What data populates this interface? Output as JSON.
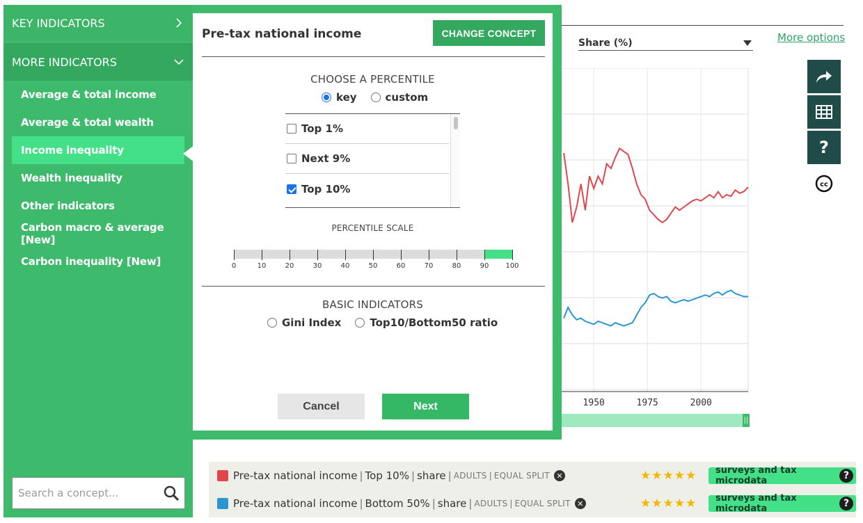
{
  "sidebar": {
    "key_indicators": "KEY INDICATORS",
    "more_indicators": "MORE INDICATORS",
    "items": [
      {
        "label": "Average & total income"
      },
      {
        "label": "Average & total wealth"
      },
      {
        "label": "Income inequality"
      },
      {
        "label": "Wealth inequality"
      },
      {
        "label": "Other indicators"
      },
      {
        "label": "Carbon macro & average [New]"
      },
      {
        "label": "Carbon inequality [New]"
      }
    ],
    "active_index": 2,
    "search_placeholder": "Search a concept..."
  },
  "modal": {
    "title": "Pre-tax national income",
    "change_concept": "CHANGE CONCEPT",
    "choose_percentile": "CHOOSE A PERCENTILE",
    "mode_options": [
      {
        "label": "key",
        "selected": true
      },
      {
        "label": "custom",
        "selected": false
      }
    ],
    "percentiles": [
      {
        "label": "Top 1%",
        "checked": false
      },
      {
        "label": "Next 9%",
        "checked": false
      },
      {
        "label": "Top 10%",
        "checked": true
      }
    ],
    "percentile_scale": "PERCENTILE SCALE",
    "scale_ticks": [
      "0",
      "10",
      "20",
      "30",
      "40",
      "50",
      "60",
      "70",
      "80",
      "90",
      "100"
    ],
    "scale_selected_range": [
      90,
      100
    ],
    "basic_indicators": "BASIC INDICATORS",
    "basic_options": [
      {
        "label": "Gini Index"
      },
      {
        "label": "Top10/Bottom50 ratio"
      }
    ],
    "cancel": "Cancel",
    "next": "Next"
  },
  "controls": {
    "unit_select": "Share (%)",
    "more_options": "More options"
  },
  "chart_data": {
    "type": "line",
    "x_ticks": [
      "1950",
      "1975",
      "2000"
    ],
    "xlim": [
      1935,
      2022
    ],
    "grid": true,
    "series": [
      {
        "color": "#e0474c",
        "x": [
          1936,
          1938,
          1940,
          1942,
          1944,
          1946,
          1948,
          1950,
          1952,
          1954,
          1956,
          1958,
          1960,
          1962,
          1964,
          1966,
          1968,
          1970,
          1972,
          1974,
          1976,
          1978,
          1980,
          1982,
          1984,
          1986,
          1988,
          1990,
          1992,
          1994,
          1996,
          1998,
          2000,
          2002,
          2004,
          2006,
          2008,
          2010,
          2012,
          2014,
          2016,
          2018,
          2020,
          2022
        ],
        "y": [
          0.305,
          0.285,
          0.26,
          0.27,
          0.285,
          0.268,
          0.29,
          0.282,
          0.29,
          0.285,
          0.298,
          0.295,
          0.302,
          0.308,
          0.306,
          0.304,
          0.295,
          0.285,
          0.278,
          0.275,
          0.268,
          0.265,
          0.262,
          0.26,
          0.262,
          0.266,
          0.27,
          0.268,
          0.27,
          0.272,
          0.274,
          0.275,
          0.274,
          0.276,
          0.278,
          0.276,
          0.28,
          0.276,
          0.278,
          0.277,
          0.281,
          0.279,
          0.28,
          0.283
        ]
      },
      {
        "color": "#2c96d0",
        "x": [
          1936,
          1938,
          1940,
          1942,
          1944,
          1946,
          1948,
          1950,
          1952,
          1954,
          1956,
          1958,
          1960,
          1962,
          1964,
          1966,
          1968,
          1970,
          1972,
          1974,
          1976,
          1978,
          1980,
          1982,
          1984,
          1986,
          1988,
          1990,
          1992,
          1994,
          1996,
          1998,
          2000,
          2002,
          2004,
          2006,
          2008,
          2010,
          2012,
          2014,
          2016,
          2018,
          2020,
          2022
        ],
        "y": [
          0.198,
          0.205,
          0.2,
          0.197,
          0.198,
          0.196,
          0.195,
          0.194,
          0.196,
          0.195,
          0.194,
          0.193,
          0.195,
          0.194,
          0.193,
          0.194,
          0.195,
          0.2,
          0.205,
          0.208,
          0.213,
          0.214,
          0.212,
          0.211,
          0.212,
          0.209,
          0.208,
          0.209,
          0.21,
          0.209,
          0.21,
          0.211,
          0.212,
          0.213,
          0.212,
          0.214,
          0.215,
          0.213,
          0.215,
          0.216,
          0.214,
          0.213,
          0.212,
          0.212
        ]
      }
    ]
  },
  "legend": [
    {
      "color": "#e0474c",
      "concept": "Pre-tax national income",
      "percentile": "Top 10%",
      "unit": "share",
      "pop": "ADULTS",
      "split": "EQUAL SPLIT",
      "stars": "★★★★★",
      "source": "surveys and tax microdata"
    },
    {
      "color": "#2c96d0",
      "concept": "Pre-tax national income",
      "percentile": "Bottom 50%",
      "unit": "share",
      "pop": "ADULTS",
      "split": "EQUAL SPLIT",
      "stars": "★★★★★",
      "source": "surveys and tax microdata"
    }
  ],
  "icons": {
    "share": "share-icon",
    "table": "table-icon",
    "help": "help-icon",
    "cc": "creative-commons-icon"
  }
}
